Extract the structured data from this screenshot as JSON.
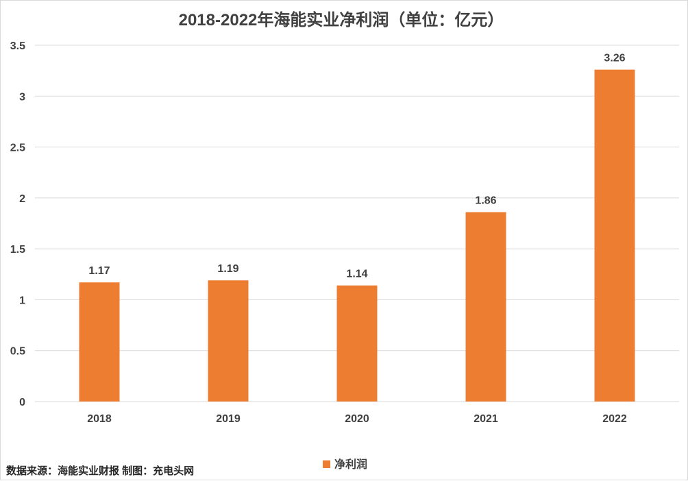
{
  "chart_data": {
    "type": "bar",
    "title": "2018-2022年海能实业净利润（单位：亿元）",
    "categories": [
      "2018",
      "2019",
      "2020",
      "2021",
      "2022"
    ],
    "series": [
      {
        "name": "净利润",
        "values": [
          1.17,
          1.19,
          1.14,
          1.86,
          3.26
        ],
        "color": "#ED7D31"
      }
    ],
    "data_labels": [
      "1.17",
      "1.19",
      "1.14",
      "1.86",
      "3.26"
    ],
    "y_ticks": [
      "0",
      "0.5",
      "1",
      "1.5",
      "2",
      "2.5",
      "3",
      "3.5"
    ],
    "ylim": [
      0,
      3.5
    ],
    "grid": true,
    "legend_position": "bottom"
  },
  "footer": {
    "source_text": "数据来源：海能实业财报  制图：充电头网"
  },
  "colors": {
    "bar": "#ED7D31",
    "grid": "#d9d9d9",
    "text": "#404040"
  }
}
